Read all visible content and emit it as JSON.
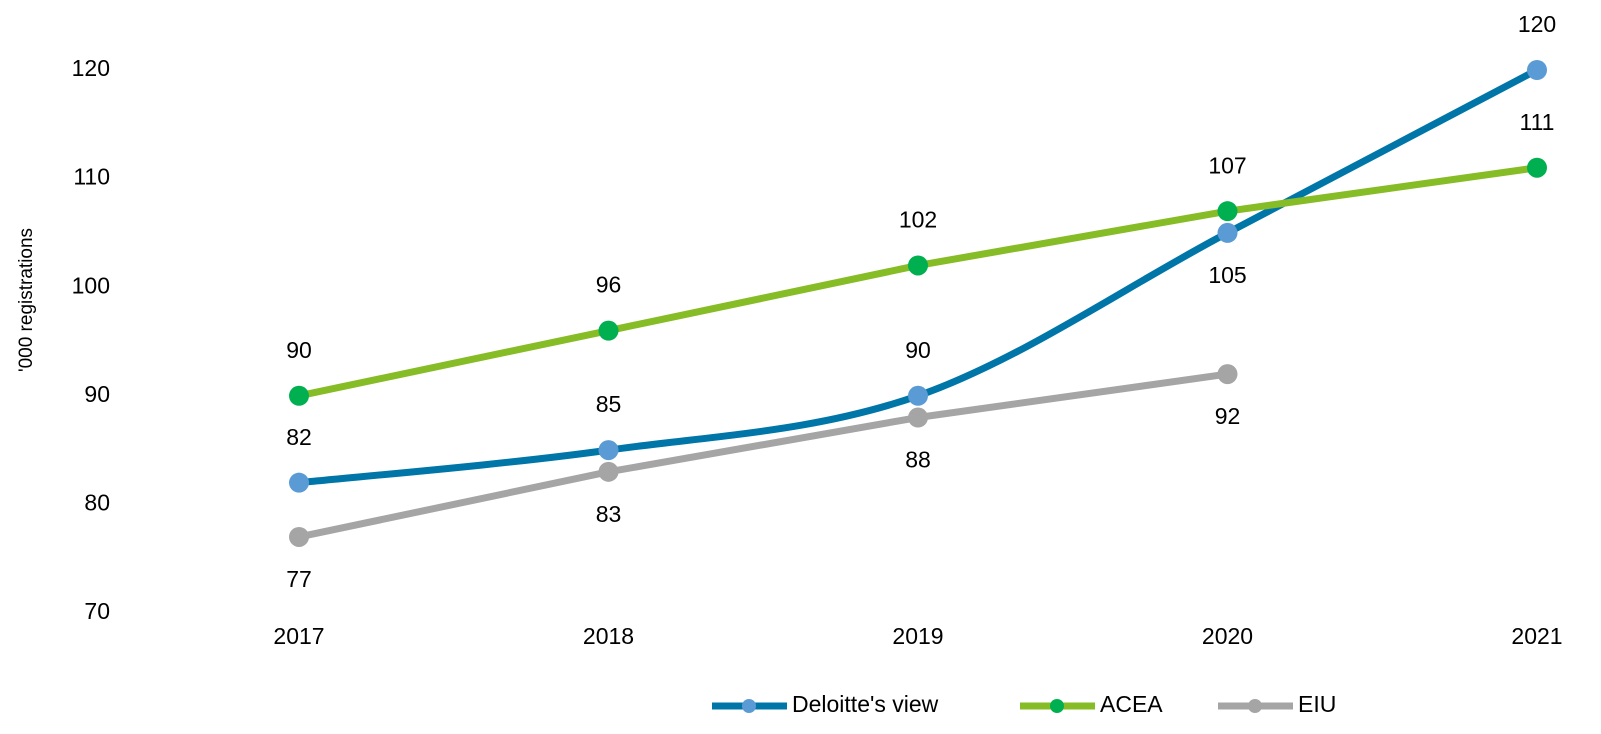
{
  "chart_data": {
    "type": "line",
    "y_label": "'000 registrations",
    "categories": [
      "2017",
      "2018",
      "2019",
      "2020",
      "2021"
    ],
    "series": [
      {
        "name": "Deloitte's view",
        "color": "#0076a8",
        "marker_color": "#5b9bd5",
        "smooth": true,
        "values": [
          82,
          85,
          90,
          105,
          120
        ]
      },
      {
        "name": "ACEA",
        "color": "#86bc25",
        "marker_color": "#00b050",
        "smooth": false,
        "values": [
          90,
          96,
          102,
          107,
          111
        ]
      },
      {
        "name": "EIU",
        "color": "#a5a5a5",
        "marker_color": "#a5a5a5",
        "smooth": false,
        "values": [
          77,
          83,
          88,
          92,
          null
        ]
      }
    ],
    "ylim": [
      70,
      120
    ],
    "yticks": [
      70,
      80,
      90,
      100,
      110,
      120
    ],
    "grid": false,
    "legend": "bottom"
  }
}
